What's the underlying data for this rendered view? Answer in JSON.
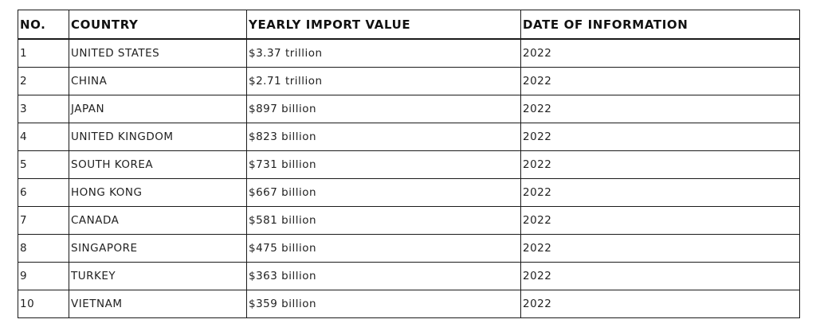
{
  "table": {
    "headers": [
      "NO.",
      "COUNTRY",
      "YEARLY IMPORT VALUE",
      "DATE OF INFORMATION"
    ],
    "rows": [
      [
        "1",
        "UNITED STATES",
        "$3.37 trillion",
        "2022"
      ],
      [
        "2",
        "CHINA",
        "$2.71 trillion",
        "2022"
      ],
      [
        "3",
        "JAPAN",
        "$897 billion",
        "2022"
      ],
      [
        "4",
        "UNITED KINGDOM",
        "$823 billion",
        "2022"
      ],
      [
        "5",
        "SOUTH KOREA",
        "$731 billion",
        "2022"
      ],
      [
        "6",
        "HONG KONG",
        "$667 billion",
        "2022"
      ],
      [
        "7",
        "CANADA",
        "$581 billion",
        "2022"
      ],
      [
        "8",
        "SINGAPORE",
        "$475 billion",
        "2022"
      ],
      [
        "9",
        "TURKEY",
        "$363 billion",
        "2022"
      ],
      [
        "10",
        "VIETNAM",
        "$359 billion",
        "2022"
      ]
    ]
  },
  "colors": {
    "border": "#1a1a1a",
    "text": "#111111",
    "background": "#ffffff"
  }
}
